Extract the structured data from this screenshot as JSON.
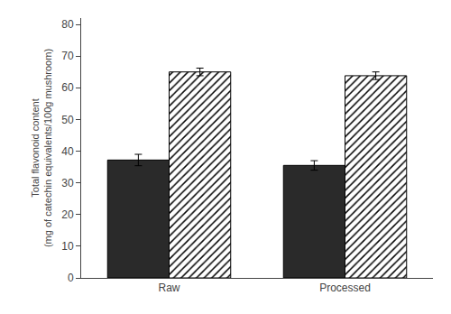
{
  "chart_data": {
    "type": "bar",
    "categories": [
      "Raw",
      "Processed"
    ],
    "series": [
      {
        "color": "#2a2a2a",
        "values": [
          37.2,
          35.5
        ],
        "errors": [
          1.8,
          1.5
        ]
      },
      {
        "color": "#e8e8e8",
        "values": [
          65.0,
          63.8
        ],
        "errors": [
          1.2,
          1.2
        ]
      }
    ],
    "ylabel": "Total flavonoid content\n(mg of catechin equivalents/100g mushroom)",
    "ylim": [
      0,
      82
    ],
    "yticks": [
      0,
      10,
      20,
      30,
      40,
      50,
      60,
      70,
      80
    ],
    "grid": false
  }
}
